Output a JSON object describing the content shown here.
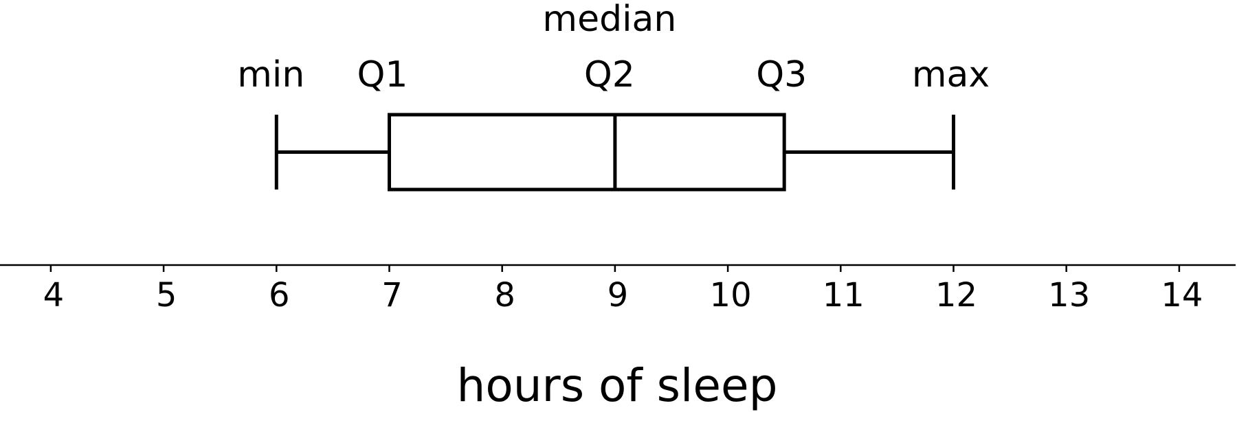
{
  "chart_data": {
    "type": "box",
    "xlabel": "hours of sleep",
    "xlim": [
      3.55,
      14.5
    ],
    "x_ticks": [
      4,
      5,
      6,
      7,
      8,
      9,
      10,
      11,
      12,
      13,
      14
    ],
    "tick_labels": [
      "4",
      "5",
      "6",
      "7",
      "8",
      "9",
      "10",
      "11",
      "12",
      "13",
      "14"
    ],
    "box": {
      "min": 6,
      "q1": 7,
      "median": 9,
      "q3": 10.5,
      "max": 12
    },
    "annotations": {
      "min": "min",
      "q1": "Q1",
      "median_word": "median",
      "q2": "Q2",
      "q3": "Q3",
      "max": "max"
    }
  }
}
